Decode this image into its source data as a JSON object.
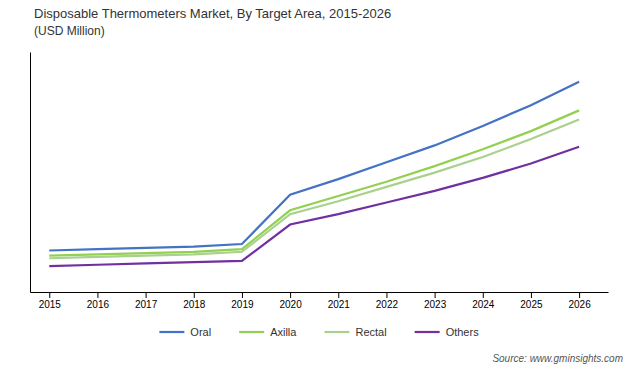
{
  "chart_data": {
    "type": "line",
    "title": "Disposable Thermometers Market, By Target Area, 2015-2026",
    "subtitle": "(USD Million)",
    "x": [
      2015,
      2016,
      2017,
      2018,
      2019,
      2020,
      2021,
      2022,
      2023,
      2024,
      2025,
      2026
    ],
    "series": [
      {
        "name": "Oral",
        "color": "#4472C4",
        "values": [
          32,
          33,
          34,
          35,
          37,
          75,
          87,
          100,
          113,
          128,
          144,
          162
        ]
      },
      {
        "name": "Axilla",
        "color": "#92D050",
        "values": [
          28,
          29,
          30,
          31,
          33,
          63,
          74,
          85,
          97,
          110,
          124,
          140
        ]
      },
      {
        "name": "Rectal",
        "color": "#A9D18E",
        "values": [
          26,
          27,
          28,
          29,
          31,
          60,
          70,
          81,
          92,
          104,
          118,
          133
        ]
      },
      {
        "name": "Others",
        "color": "#7030A0",
        "values": [
          20,
          21,
          22,
          23,
          24,
          52,
          60,
          69,
          78,
          88,
          99,
          112
        ]
      }
    ],
    "xlim": [
      2014.6,
      2026.6
    ],
    "xticks": [
      2015,
      2016,
      2017,
      2018,
      2019,
      2020,
      2021,
      2022,
      2023,
      2024,
      2025,
      2026
    ],
    "ylim": [
      0,
      185
    ],
    "tick_labels": "x",
    "grid": false,
    "legend": "bottom",
    "annotations": [
      "Source: www.gminsights.com"
    ]
  }
}
